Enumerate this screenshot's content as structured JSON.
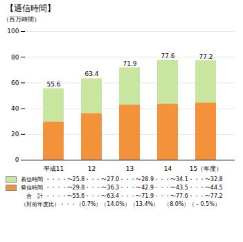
{
  "chart_data": {
    "type": "bar",
    "stacked": true,
    "title": "【通信時間】",
    "ylabel": "（百万時間）",
    "categories": [
      "平成11",
      "12",
      "13",
      "14",
      "15（年度）"
    ],
    "series": [
      {
        "name": "発信時間 ・・・・〜29.8・・・〜36.3・・・〜42.9・・・〜43.5・・・〜44.5",
        "color": "#f4923c",
        "values": [
          29.8,
          36.3,
          42.9,
          43.5,
          44.5
        ]
      },
      {
        "name": "着信時間 ・・・・〜25.8・・・〜27.0・・・〜28.9・・・〜34.1・・・〜32.8",
        "color": "#c8e6a0",
        "values": [
          25.8,
          27.0,
          28.9,
          34.1,
          32.8
        ]
      }
    ],
    "totals": [
      55.6,
      63.4,
      71.9,
      77.6,
      77.2
    ],
    "annotations": [
      "　合　計 ・・・・〜55.6・・・〜63.4・・・〜71.9・・・〜77.6・・・〜77.2",
      "（対前年度比）・・・（0.7%）（14.0%）（13.4%）　（8.0%）（－0.5%）"
    ],
    "ylim": [
      0,
      100
    ],
    "yticks": [
      0,
      20,
      40,
      60,
      80,
      100
    ],
    "grid": true
  }
}
